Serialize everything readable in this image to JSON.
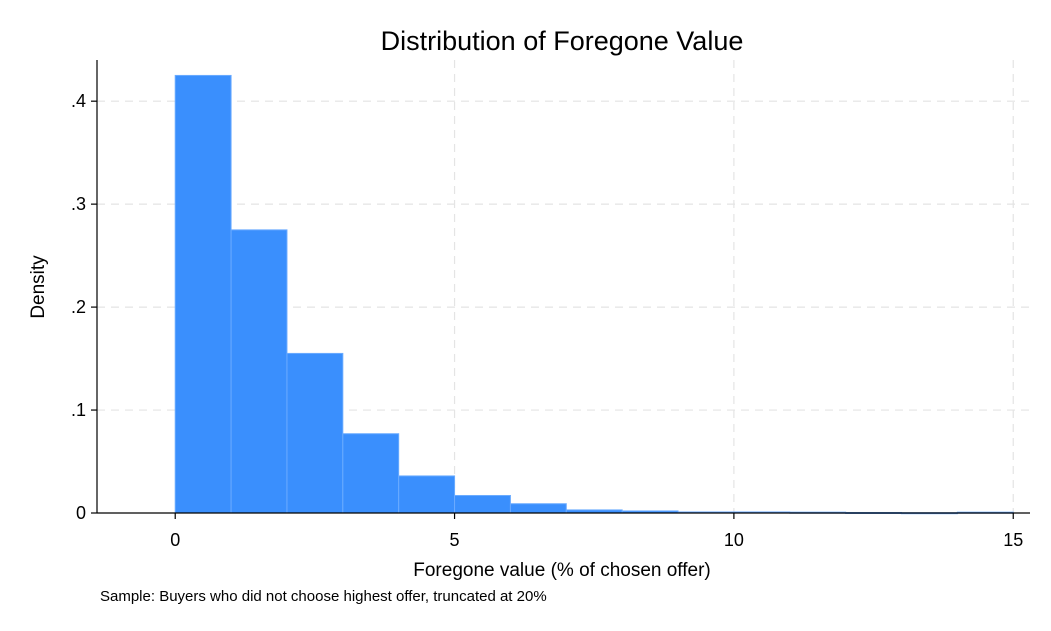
{
  "chart_data": {
    "type": "bar",
    "title": "Distribution of Foregone Value",
    "xlabel": "Foregone value (% of chosen offer)",
    "ylabel": "Density",
    "note": "Sample: Buyers who did not choose highest offer, truncated at 20%",
    "xlim": [
      -1.4,
      15.3
    ],
    "ylim": [
      0,
      0.44
    ],
    "xticks": [
      0,
      5,
      10,
      15
    ],
    "xtick_labels": [
      "0",
      "5",
      "10",
      "15"
    ],
    "yticks": [
      0,
      0.1,
      0.2,
      0.3,
      0.4
    ],
    "ytick_labels": [
      "0",
      ".1",
      ".2",
      ".3",
      ".4"
    ],
    "grid": true,
    "bar_color": "#3a8ffd",
    "bins": [
      {
        "x0": 0,
        "x1": 1,
        "density": 0.425
      },
      {
        "x0": 1,
        "x1": 2,
        "density": 0.275
      },
      {
        "x0": 2,
        "x1": 3,
        "density": 0.155
      },
      {
        "x0": 3,
        "x1": 4,
        "density": 0.077
      },
      {
        "x0": 4,
        "x1": 5,
        "density": 0.036
      },
      {
        "x0": 5,
        "x1": 6,
        "density": 0.017
      },
      {
        "x0": 6,
        "x1": 7,
        "density": 0.009
      },
      {
        "x0": 7,
        "x1": 8,
        "density": 0.003
      },
      {
        "x0": 8,
        "x1": 9,
        "density": 0.002
      },
      {
        "x0": 9,
        "x1": 10,
        "density": 0.001
      },
      {
        "x0": 10,
        "x1": 11,
        "density": 0.001
      },
      {
        "x0": 11,
        "x1": 12,
        "density": 0.0008
      },
      {
        "x0": 12,
        "x1": 13,
        "density": 0.0005
      },
      {
        "x0": 13,
        "x1": 14,
        "density": 0.0003
      },
      {
        "x0": 14,
        "x1": 15,
        "density": 0.0008
      }
    ]
  }
}
